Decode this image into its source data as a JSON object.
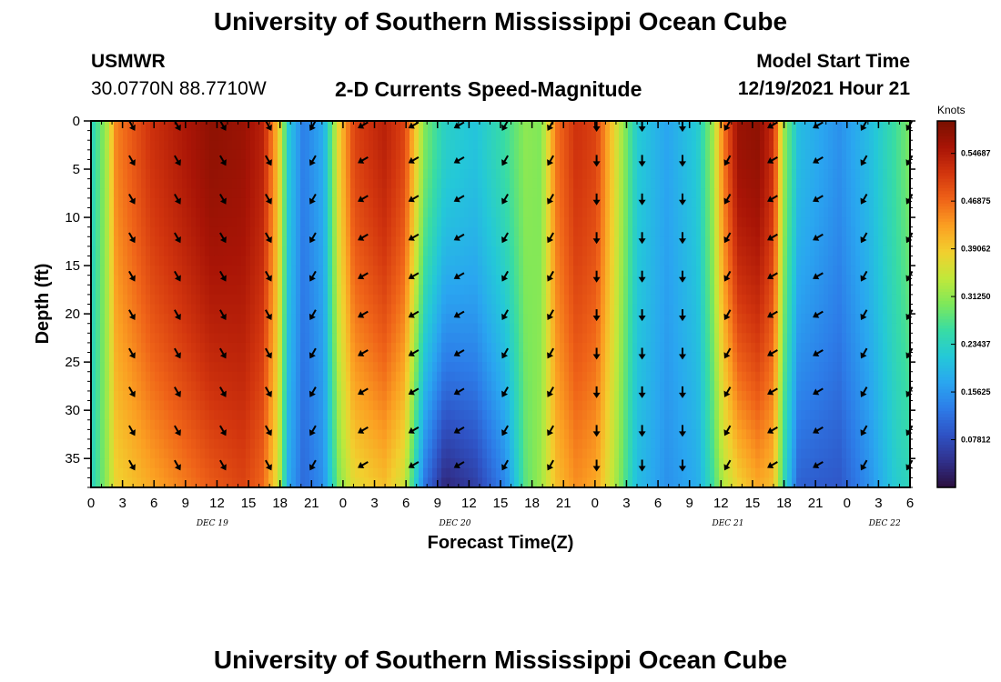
{
  "page": {
    "title": "University of Southern Mississippi Ocean Cube",
    "footer_title": "University of Southern Mississippi Ocean Cube"
  },
  "station": {
    "id": "USMWR",
    "coords": "30.0770N  88.7710W"
  },
  "chart_subtitle": "2-D Currents Speed-Magnitude",
  "model": {
    "label": "Model Start Time",
    "value": "12/19/2021 Hour 21"
  },
  "colors": {
    "palette": [
      "#2b0f3f",
      "#30308c",
      "#2f52c4",
      "#2d7ce8",
      "#2aa6f0",
      "#24c8d8",
      "#38dca4",
      "#7ee85a",
      "#c2e83a",
      "#f2cf2e",
      "#fb9f22",
      "#ef6318",
      "#d2350e",
      "#a81406",
      "#781000"
    ]
  },
  "chart_data": {
    "type": "heatmap",
    "title": "2-D Currents Speed-Magnitude",
    "xlabel": "Forecast Time(Z)",
    "ylabel": "Depth (ft)",
    "colorbar_label": "Knots",
    "colorbar_ticks": [
      "0.54687",
      "0.46875",
      "0.39062",
      "0.31250",
      "0.23437",
      "0.15625",
      "0.07812"
    ],
    "colorbar_values": [
      0.54687,
      0.46875,
      0.39062,
      0.3125,
      0.23437,
      0.15625,
      0.07812
    ],
    "zlim": [
      0.0,
      0.6
    ],
    "xlim": [
      0,
      81
    ],
    "ylim": [
      38,
      0
    ],
    "x_tick_labels": [
      "0",
      "3",
      "6",
      "9",
      "12",
      "15",
      "18",
      "21",
      "0",
      "3",
      "6",
      "9",
      "12",
      "15",
      "18",
      "21",
      "0",
      "3",
      "6",
      "9",
      "12",
      "15",
      "18",
      "21",
      "0",
      "3",
      "6"
    ],
    "y_ticks": [
      0,
      5,
      10,
      15,
      20,
      25,
      30,
      35
    ],
    "date_labels": [
      {
        "text": "DEC 19",
        "hour": 12
      },
      {
        "text": "DEC 20",
        "hour": 36
      },
      {
        "text": "DEC 21",
        "hour": 63
      },
      {
        "text": "DEC 22",
        "hour": 78.5
      }
    ],
    "arrow_hours": [
      4,
      8.5,
      13,
      17.5,
      22,
      27,
      32,
      36.5,
      41,
      45.5,
      50,
      54.5,
      58.5,
      63,
      67.5,
      72,
      76.5,
      81
    ],
    "arrow_depths": [
      0,
      4,
      8,
      12,
      16,
      20,
      24,
      28,
      32,
      35.6
    ],
    "arrow_directions_deg": [
      300,
      300,
      300,
      300,
      240,
      210,
      210,
      210,
      240,
      240,
      270,
      270,
      270,
      240,
      210,
      210,
      240,
      240
    ],
    "speed_profile_by_hour": [
      {
        "hour": 0,
        "surface": 0.23,
        "bottom": 0.23
      },
      {
        "hour": 1.5,
        "surface": 0.32,
        "bottom": 0.31
      },
      {
        "hour": 2.5,
        "surface": 0.45,
        "bottom": 0.38
      },
      {
        "hour": 6,
        "surface": 0.52,
        "bottom": 0.42
      },
      {
        "hour": 9,
        "surface": 0.55,
        "bottom": 0.45
      },
      {
        "hour": 12,
        "surface": 0.58,
        "bottom": 0.48
      },
      {
        "hour": 15,
        "surface": 0.57,
        "bottom": 0.5
      },
      {
        "hour": 17,
        "surface": 0.54,
        "bottom": 0.47
      },
      {
        "hour": 18.5,
        "surface": 0.4,
        "bottom": 0.36
      },
      {
        "hour": 19.5,
        "surface": 0.22,
        "bottom": 0.18
      },
      {
        "hour": 21,
        "surface": 0.13,
        "bottom": 0.11
      },
      {
        "hour": 23,
        "surface": 0.18,
        "bottom": 0.15
      },
      {
        "hour": 24.5,
        "surface": 0.38,
        "bottom": 0.3
      },
      {
        "hour": 26,
        "surface": 0.5,
        "bottom": 0.37
      },
      {
        "hour": 29,
        "surface": 0.54,
        "bottom": 0.4
      },
      {
        "hour": 31,
        "surface": 0.5,
        "bottom": 0.35
      },
      {
        "hour": 33,
        "surface": 0.3,
        "bottom": 0.12
      },
      {
        "hour": 35,
        "surface": 0.23,
        "bottom": 0.03
      },
      {
        "hour": 38,
        "surface": 0.21,
        "bottom": 0.06
      },
      {
        "hour": 41,
        "surface": 0.26,
        "bottom": 0.14
      },
      {
        "hour": 43,
        "surface": 0.31,
        "bottom": 0.28
      },
      {
        "hour": 44.5,
        "surface": 0.3,
        "bottom": 0.32
      },
      {
        "hour": 46,
        "surface": 0.46,
        "bottom": 0.4
      },
      {
        "hour": 48,
        "surface": 0.52,
        "bottom": 0.44
      },
      {
        "hour": 50,
        "surface": 0.5,
        "bottom": 0.42
      },
      {
        "hour": 52,
        "surface": 0.36,
        "bottom": 0.32
      },
      {
        "hour": 54,
        "surface": 0.22,
        "bottom": 0.2
      },
      {
        "hour": 57,
        "surface": 0.17,
        "bottom": 0.15
      },
      {
        "hour": 60,
        "surface": 0.22,
        "bottom": 0.18
      },
      {
        "hour": 61.5,
        "surface": 0.32,
        "bottom": 0.26
      },
      {
        "hour": 62.5,
        "surface": 0.45,
        "bottom": 0.33
      },
      {
        "hour": 64,
        "surface": 0.57,
        "bottom": 0.38
      },
      {
        "hour": 66,
        "surface": 0.58,
        "bottom": 0.42
      },
      {
        "hour": 67.5,
        "surface": 0.52,
        "bottom": 0.4
      },
      {
        "hour": 68.5,
        "surface": 0.32,
        "bottom": 0.25
      },
      {
        "hour": 70,
        "surface": 0.2,
        "bottom": 0.1
      },
      {
        "hour": 74,
        "surface": 0.15,
        "bottom": 0.09
      },
      {
        "hour": 77,
        "surface": 0.2,
        "bottom": 0.15
      },
      {
        "hour": 79.5,
        "surface": 0.26,
        "bottom": 0.22
      },
      {
        "hour": 81,
        "surface": 0.3,
        "bottom": 0.24
      }
    ]
  }
}
